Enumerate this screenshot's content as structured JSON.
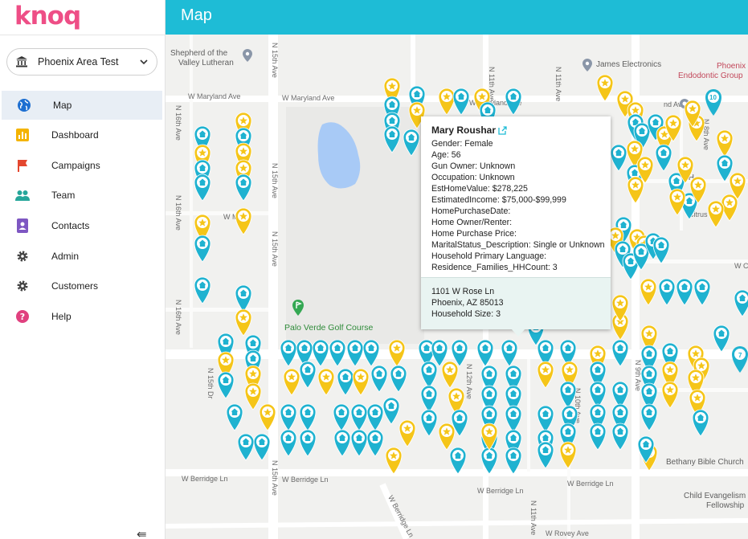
{
  "app": {
    "logo": "knoq",
    "header_title": "Map",
    "collapse_glyph": "⇚"
  },
  "colors": {
    "brand": "#ee4e86",
    "header": "#1ebcd6",
    "pin_blue": "#1fb2d0",
    "pin_yellow": "#f5c518"
  },
  "account_selector": {
    "label": "Phoenix Area Test",
    "icon": "bank-icon"
  },
  "nav": [
    {
      "label": "Map",
      "icon": "globe-icon",
      "active": true
    },
    {
      "label": "Dashboard",
      "icon": "bar-chart-icon"
    },
    {
      "label": "Campaigns",
      "icon": "flag-icon"
    },
    {
      "label": "Team",
      "icon": "people-icon"
    },
    {
      "label": "Contacts",
      "icon": "contact-card-icon"
    },
    {
      "label": "Admin",
      "icon": "gear-icon"
    },
    {
      "label": "Customers",
      "icon": "gear-icon"
    },
    {
      "label": "Help",
      "icon": "help-icon"
    }
  ],
  "map": {
    "streets": {
      "maryland_left": "W Maryland Ave",
      "maryland_right": "W Maryland Ave",
      "maryland_far": "nd Ave",
      "maryland_mid": "W Ma",
      "n15th_top": "N 15th Ave",
      "n15th_mid": "N 15th Ave",
      "n15th_low": "N 15th Ave",
      "n15th_bottom": "N 15th Ave",
      "n16th_top": "N 16th Ave",
      "n16th_mid": "N 16th Ave",
      "n16th_low": "N 16th Ave",
      "n15th_dr": "N 15th Dr",
      "n11th_a": "N 11th Ave",
      "n11th_b": "N 11th Ave",
      "n12th": "N 12th Ave",
      "n10th": "N 10th Ave",
      "n9th": "N 9th Ave",
      "n8th": "N 8th Ave",
      "n11th_bottom": "N 11th Ave",
      "citrus": "Citrus W",
      "clar": "W Clar",
      "berridge_a": "W Berridge Ln",
      "berridge_b": "W Berridge Ln",
      "berridge_c": "W Berridge Ln",
      "berridge_d": "W Berridge Ln",
      "berridge_diag": "W Berridge Ln",
      "rovey": "W Rovey Ave"
    },
    "pois": {
      "shepherd_1": "Shepherd of the",
      "shepherd_2": "Valley Lutheran",
      "james": "James Electronics",
      "phoenix_1": "Phoenix",
      "phoenix_2": "Endodontic Group",
      "golf": "Palo Verde Golf Course",
      "bethany": "Bethany Bible Church",
      "child_1": "Child Evangelism",
      "child_2": "Fellowship",
      "partial_k": "k H"
    },
    "cluster_labels": {
      "c10": "10",
      "c7": "7"
    }
  },
  "info_window": {
    "name": "Mary Roushar",
    "lines": [
      "Gender: Female",
      "Age: 56",
      "Gun Owner: Unknown",
      "Occupation: Unknown",
      "EstHomeValue: $278,225",
      "EstimatedIncome: $75,000-$99,999",
      "HomePurchaseDate:",
      "Home Owner/Renter:",
      "Home Purchase Price:",
      "MaritalStatus_Description: Single or Unknown",
      "Household Primary Language:",
      "Residence_Families_HHCount: 3"
    ],
    "address": [
      "1101 W Rose Ln",
      "Phoenix, AZ 85013",
      "Household Size: 3"
    ]
  }
}
